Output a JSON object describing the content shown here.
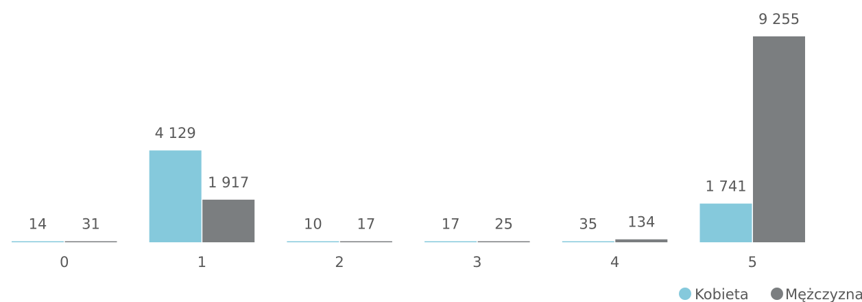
{
  "chart_data": {
    "type": "bar",
    "title": "",
    "xlabel": "",
    "ylabel": "",
    "categories": [
      "0",
      "1",
      "2",
      "3",
      "4",
      "5"
    ],
    "series": [
      {
        "name": "Kobieta",
        "values": [
          14,
          4129,
          10,
          17,
          35,
          1741
        ],
        "labels": [
          "14",
          "4 129",
          "10",
          "17",
          "35",
          "1 741"
        ],
        "color": "#85c9dc"
      },
      {
        "name": "Mężczyzna",
        "values": [
          31,
          1917,
          17,
          25,
          134,
          9255
        ],
        "labels": [
          "31",
          "1 917",
          "17",
          "25",
          "134",
          "9 255"
        ],
        "color": "#7b7e80"
      }
    ],
    "ylim": [
      0,
      9255
    ],
    "grid": false,
    "legend_position": "bottom-right",
    "y_axis_visible": false
  }
}
